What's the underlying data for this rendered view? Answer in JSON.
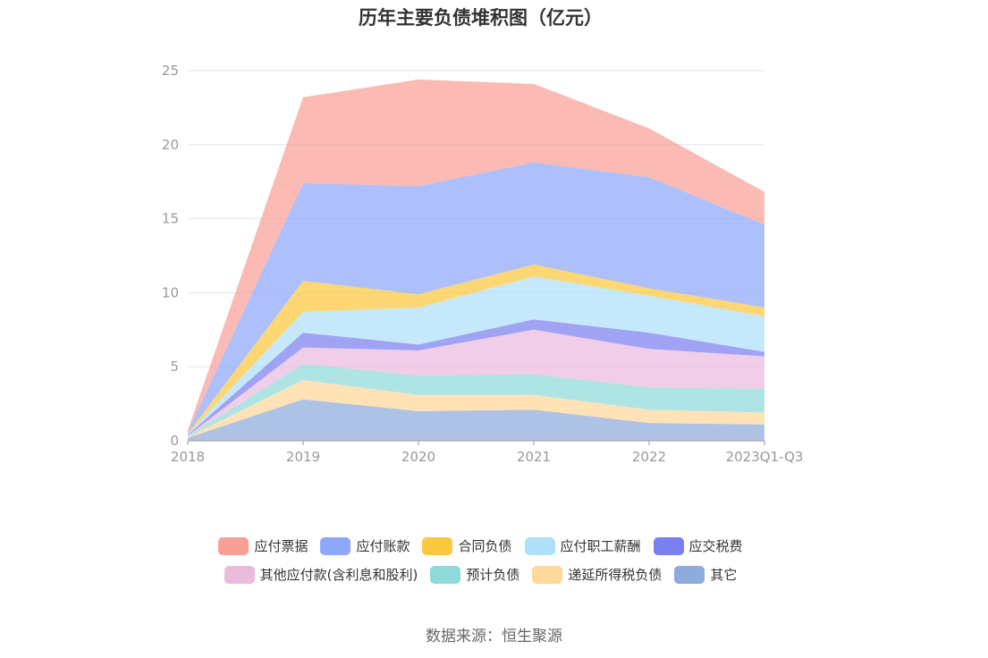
{
  "title": "历年主要负债堆积图（亿元）",
  "source": "数据来源：恒生聚源",
  "chart_data": {
    "type": "area",
    "stacked": true,
    "title": "历年主要负债堆积图（亿元）",
    "categories": [
      "2018",
      "2019",
      "2020",
      "2021",
      "2022",
      "2023Q1-Q3"
    ],
    "ylim": [
      0,
      25
    ],
    "yticks": [
      0,
      5,
      10,
      15,
      20,
      25
    ],
    "grid": true,
    "legend_position": "bottom",
    "series": [
      {
        "name": "其它",
        "color": "#8faadc",
        "values": [
          0.2,
          2.8,
          2.0,
          2.1,
          1.2,
          1.1
        ]
      },
      {
        "name": "递延所得税负债",
        "color": "#ffd89b",
        "values": [
          0.05,
          1.3,
          1.1,
          1.0,
          0.9,
          0.8
        ]
      },
      {
        "name": "预计负债",
        "color": "#8fd9d9",
        "values": [
          0.05,
          1.1,
          1.3,
          1.4,
          1.5,
          1.6
        ]
      },
      {
        "name": "其他应付款(含利息和股利)",
        "color": "#ebbbde",
        "values": [
          0.05,
          1.1,
          1.7,
          3.0,
          2.6,
          2.2
        ]
      },
      {
        "name": "应交税费",
        "color": "#7b7ff0",
        "values": [
          0.05,
          1.0,
          0.4,
          0.7,
          1.1,
          0.3
        ]
      },
      {
        "name": "应付职工薪酬",
        "color": "#aee1f9",
        "values": [
          0.05,
          1.4,
          2.5,
          2.9,
          2.5,
          2.4
        ]
      },
      {
        "name": "合同负债",
        "color": "#fbc83f",
        "values": [
          0.05,
          2.1,
          0.9,
          0.8,
          0.5,
          0.6
        ]
      },
      {
        "name": "应付账款",
        "color": "#8ea8fb",
        "values": [
          0.1,
          6.6,
          7.3,
          6.9,
          7.5,
          5.6
        ]
      },
      {
        "name": "应付票据",
        "color": "#fa9f96",
        "values": [
          0.1,
          5.8,
          7.2,
          5.3,
          3.3,
          2.2
        ]
      }
    ],
    "legend_rows": [
      [
        "应付票据",
        "应付账款",
        "合同负债",
        "应付职工薪酬",
        "应交税费"
      ],
      [
        "其他应付款(含利息和股利)",
        "预计负债",
        "递延所得税负债",
        "其它"
      ]
    ]
  }
}
